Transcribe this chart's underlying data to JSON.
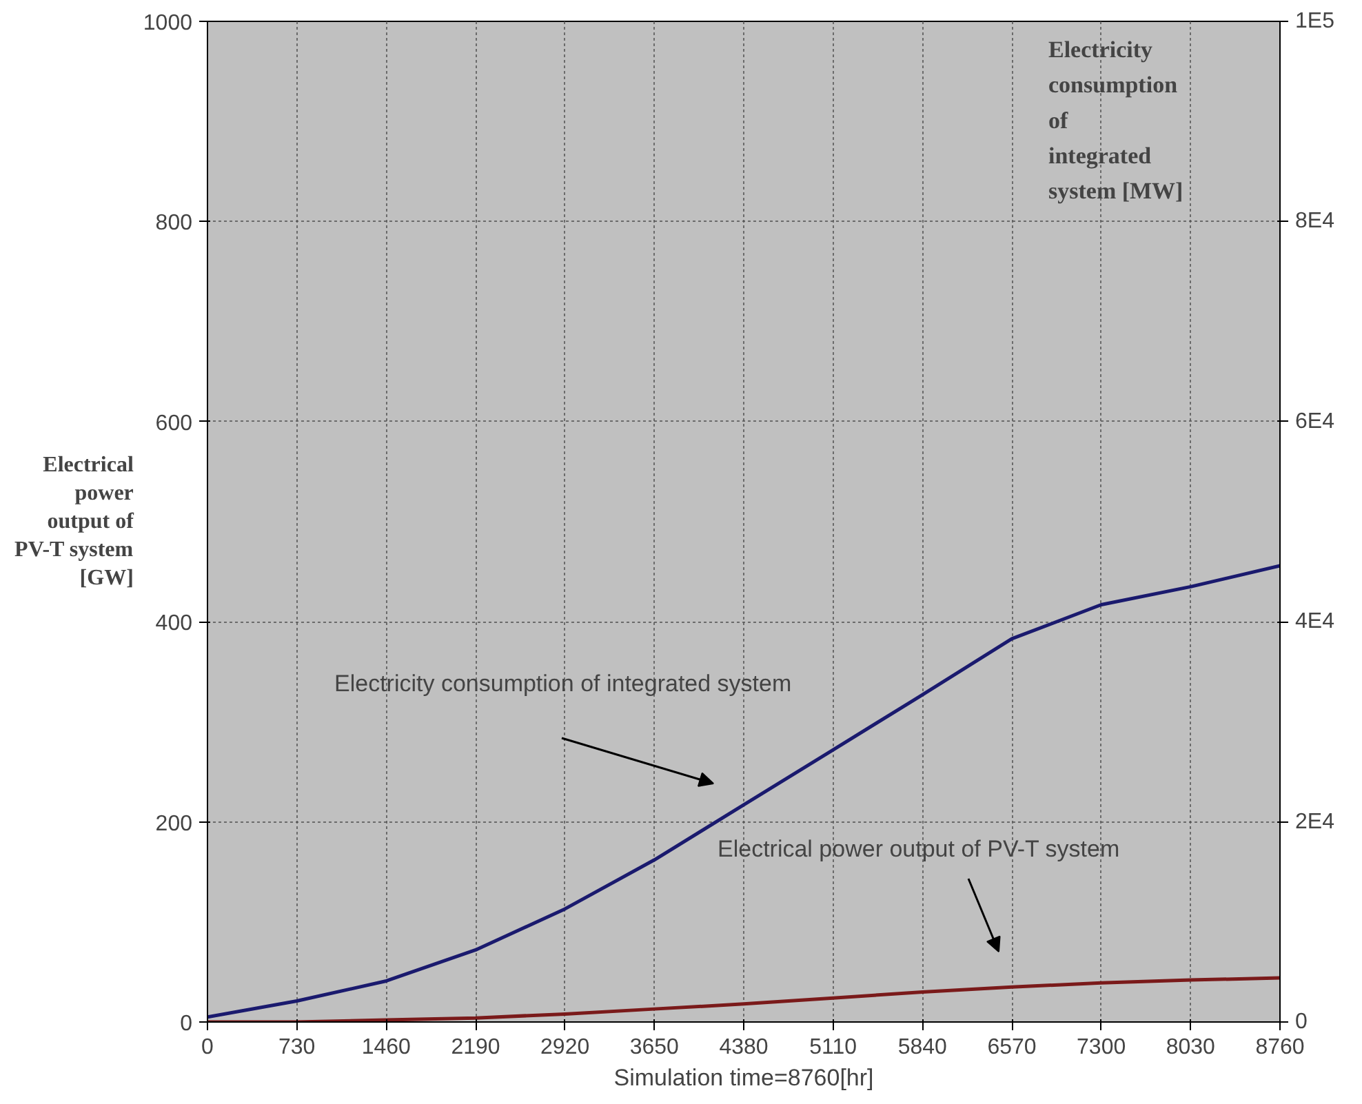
{
  "chart_data": {
    "type": "line",
    "xlabel": "Simulation time=8760[hr]",
    "ylabel": "Electrical power output of PV-T system [GW]",
    "y2label": "Electricity consumption of integrated system [MW]",
    "x": [
      0,
      730,
      1460,
      2190,
      2920,
      3650,
      4380,
      5110,
      5840,
      6570,
      7300,
      8030,
      8760
    ],
    "series": [
      {
        "color": "#1a1a6e",
        "axis": "y2",
        "values": [
          500,
          2100,
          4100,
          7200,
          11300,
          16200,
          21700,
          27200,
          32700,
          38300,
          41700,
          43500,
          45600
        ]
      },
      {
        "color": "#7a1a1a",
        "values": [
          0,
          0,
          2,
          4,
          8,
          13,
          18,
          24,
          30,
          35,
          39,
          42,
          44
        ]
      }
    ],
    "annotations": [
      "Electricity consumption of integrated system",
      "Electrical power output of PV-T system"
    ],
    "xlim": [
      0,
      8760
    ],
    "xticks": [
      0,
      730,
      1460,
      2190,
      2920,
      3650,
      4380,
      5110,
      5840,
      6570,
      7300,
      8030,
      8760
    ],
    "ylim": [
      0,
      1000
    ],
    "yticks": [
      0,
      200,
      400,
      600,
      800,
      1000
    ],
    "y2lim": [
      0,
      100000
    ],
    "y2ticks": [
      {
        "value": 0,
        "label": "0"
      },
      {
        "value": 20000,
        "label": "2E4"
      },
      {
        "value": 40000,
        "label": "4E4"
      },
      {
        "value": 60000,
        "label": "6E4"
      },
      {
        "value": 80000,
        "label": "8E4"
      },
      {
        "value": 100000,
        "label": "1E5"
      }
    ],
    "grid": true,
    "line_style": "solid",
    "marker": "none"
  }
}
